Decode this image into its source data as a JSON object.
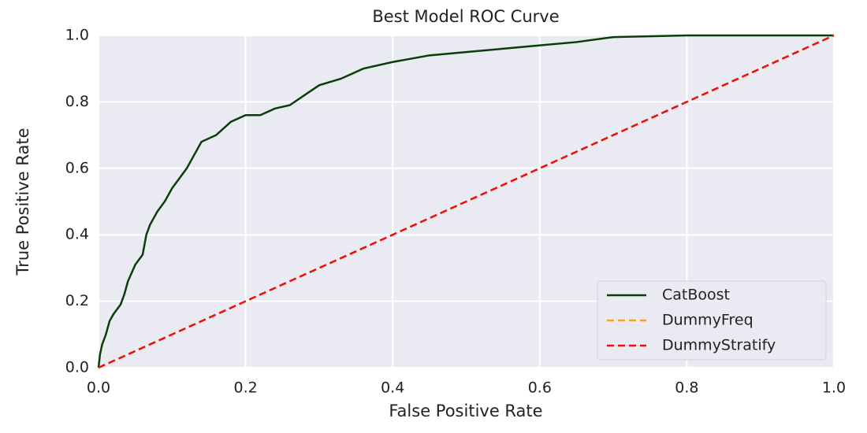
{
  "chart_data": {
    "type": "line",
    "title": "Best Model ROC Curve",
    "x_label": "False Positive Rate",
    "y_label": "True Positive Rate",
    "xlim": [
      0,
      1
    ],
    "ylim": [
      0,
      1
    ],
    "xticks": [
      {
        "value": 0,
        "label": "0.0"
      },
      0.2,
      0.4,
      0.6,
      0.8,
      {
        "value": 1,
        "label": "1.0"
      }
    ],
    "yticks": [
      {
        "value": 0,
        "label": "0.0"
      },
      0.2,
      0.4,
      0.6,
      0.8,
      {
        "value": 1,
        "label": "1.0"
      }
    ],
    "grid": true,
    "legend": "lower right",
    "series": [
      {
        "name": "CatBoost",
        "color": "#0b3d0b",
        "linestyle": "solid",
        "x": [
          0,
          0.002,
          0.005,
          0.01,
          0.015,
          0.02,
          0.03,
          0.035,
          0.04,
          0.05,
          0.06,
          0.065,
          0.07,
          0.08,
          0.09,
          0.1,
          0.11,
          0.12,
          0.13,
          0.14,
          0.16,
          0.18,
          0.2,
          0.22,
          0.24,
          0.26,
          0.28,
          0.3,
          0.33,
          0.36,
          0.4,
          0.45,
          0.5,
          0.55,
          0.6,
          0.65,
          0.7,
          0.8,
          1
        ],
        "values": [
          0,
          0.04,
          0.07,
          0.1,
          0.14,
          0.16,
          0.19,
          0.22,
          0.26,
          0.31,
          0.34,
          0.4,
          0.43,
          0.47,
          0.5,
          0.54,
          0.57,
          0.6,
          0.64,
          0.68,
          0.7,
          0.74,
          0.76,
          0.76,
          0.78,
          0.79,
          0.82,
          0.85,
          0.87,
          0.9,
          0.92,
          0.94,
          0.95,
          0.96,
          0.97,
          0.98,
          0.995,
          1,
          1
        ]
      },
      {
        "name": "DummyFreq",
        "color": "#ff9f1a",
        "linestyle": "dashed",
        "x": [
          0,
          1
        ],
        "values": [
          0,
          1
        ]
      },
      {
        "name": "DummyStratify",
        "color": "#e8110f",
        "linestyle": "dashed",
        "x": [
          0,
          1
        ],
        "values": [
          0,
          1
        ]
      }
    ]
  }
}
